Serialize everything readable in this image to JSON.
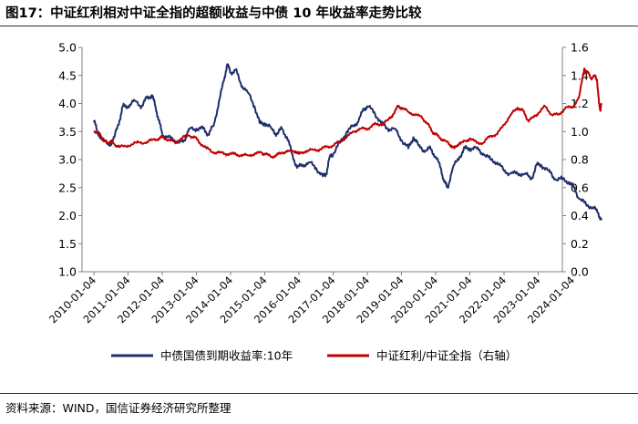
{
  "title": "图17：中证红利相对中证全指的超额收益与中债 10 年收益率走势比较",
  "source": "资料来源：WIND，国信证券经济研究所整理",
  "chart_data": {
    "type": "line",
    "x_tick_labels": [
      "2010-01-04",
      "2011-01-04",
      "2012-01-04",
      "2013-01-04",
      "2014-01-04",
      "2015-01-04",
      "2016-01-04",
      "2017-01-04",
      "2018-01-04",
      "2019-01-04",
      "2020-01-04",
      "2021-01-04",
      "2022-01-04",
      "2023-01-04",
      "2024-01-04"
    ],
    "x_range": [
      2010.0,
      2024.85
    ],
    "y_left": {
      "ticks": [
        "1.0",
        "1.5",
        "2.0",
        "2.5",
        "3.0",
        "3.5",
        "4.0",
        "4.5",
        "5.0"
      ],
      "min": 1.0,
      "max": 5.0
    },
    "y_right": {
      "ticks": [
        "0.0",
        "0.2",
        "0.4",
        "0.6",
        "0.8",
        "1.0",
        "1.2",
        "1.4",
        "1.6"
      ],
      "min": 0.0,
      "max": 1.6
    },
    "series": [
      {
        "name": "中债国债到期收益率:10年",
        "axis": "left",
        "color": "#1f2f6b",
        "points": [
          [
            2010.0,
            3.7
          ],
          [
            2010.1,
            3.5
          ],
          [
            2010.25,
            3.35
          ],
          [
            2010.45,
            3.25
          ],
          [
            2010.6,
            3.4
          ],
          [
            2010.75,
            3.7
          ],
          [
            2010.85,
            3.95
          ],
          [
            2011.0,
            3.95
          ],
          [
            2011.2,
            4.05
          ],
          [
            2011.4,
            3.95
          ],
          [
            2011.55,
            4.1
          ],
          [
            2011.7,
            4.15
          ],
          [
            2011.8,
            3.95
          ],
          [
            2011.9,
            3.7
          ],
          [
            2012.0,
            3.45
          ],
          [
            2012.15,
            3.4
          ],
          [
            2012.35,
            3.35
          ],
          [
            2012.5,
            3.3
          ],
          [
            2012.65,
            3.35
          ],
          [
            2012.8,
            3.55
          ],
          [
            2013.0,
            3.55
          ],
          [
            2013.2,
            3.55
          ],
          [
            2013.35,
            3.45
          ],
          [
            2013.5,
            3.6
          ],
          [
            2013.65,
            4.0
          ],
          [
            2013.8,
            4.4
          ],
          [
            2013.9,
            4.7
          ],
          [
            2014.0,
            4.55
          ],
          [
            2014.15,
            4.6
          ],
          [
            2014.3,
            4.35
          ],
          [
            2014.5,
            4.2
          ],
          [
            2014.7,
            3.95
          ],
          [
            2014.85,
            3.65
          ],
          [
            2015.0,
            3.65
          ],
          [
            2015.2,
            3.55
          ],
          [
            2015.35,
            3.45
          ],
          [
            2015.5,
            3.55
          ],
          [
            2015.65,
            3.4
          ],
          [
            2015.8,
            3.1
          ],
          [
            2015.95,
            2.85
          ],
          [
            2016.1,
            2.9
          ],
          [
            2016.3,
            2.95
          ],
          [
            2016.5,
            2.85
          ],
          [
            2016.7,
            2.7
          ],
          [
            2016.8,
            2.75
          ],
          [
            2016.9,
            3.05
          ],
          [
            2017.0,
            3.1
          ],
          [
            2017.2,
            3.3
          ],
          [
            2017.4,
            3.5
          ],
          [
            2017.6,
            3.6
          ],
          [
            2017.75,
            3.7
          ],
          [
            2017.9,
            3.9
          ],
          [
            2018.0,
            3.95
          ],
          [
            2018.2,
            3.85
          ],
          [
            2018.4,
            3.65
          ],
          [
            2018.6,
            3.55
          ],
          [
            2018.8,
            3.55
          ],
          [
            2019.0,
            3.35
          ],
          [
            2019.2,
            3.2
          ],
          [
            2019.35,
            3.4
          ],
          [
            2019.5,
            3.25
          ],
          [
            2019.7,
            3.15
          ],
          [
            2019.85,
            3.2
          ],
          [
            2020.0,
            3.05
          ],
          [
            2020.15,
            2.85
          ],
          [
            2020.25,
            2.6
          ],
          [
            2020.35,
            2.5
          ],
          [
            2020.5,
            2.85
          ],
          [
            2020.7,
            3.05
          ],
          [
            2020.85,
            3.2
          ],
          [
            2021.0,
            3.2
          ],
          [
            2021.2,
            3.2
          ],
          [
            2021.4,
            3.1
          ],
          [
            2021.6,
            3.0
          ],
          [
            2021.8,
            2.95
          ],
          [
            2022.0,
            2.8
          ],
          [
            2022.2,
            2.75
          ],
          [
            2022.4,
            2.75
          ],
          [
            2022.6,
            2.75
          ],
          [
            2022.8,
            2.65
          ],
          [
            2022.95,
            2.9
          ],
          [
            2023.1,
            2.9
          ],
          [
            2023.3,
            2.8
          ],
          [
            2023.5,
            2.65
          ],
          [
            2023.7,
            2.65
          ],
          [
            2023.9,
            2.6
          ],
          [
            2024.05,
            2.5
          ],
          [
            2024.2,
            2.3
          ],
          [
            2024.4,
            2.2
          ],
          [
            2024.6,
            2.15
          ],
          [
            2024.75,
            2.05
          ],
          [
            2024.85,
            1.92
          ]
        ]
      },
      {
        "name": "中证红利/中证全指（右轴）",
        "axis": "right",
        "color": "#c00000",
        "points": [
          [
            2010.0,
            1.0
          ],
          [
            2010.1,
            1.0
          ],
          [
            2010.2,
            0.97
          ],
          [
            2010.3,
            0.93
          ],
          [
            2010.4,
            0.92
          ],
          [
            2010.5,
            0.93
          ],
          [
            2010.6,
            0.91
          ],
          [
            2010.75,
            0.89
          ],
          [
            2011.0,
            0.9
          ],
          [
            2011.25,
            0.92
          ],
          [
            2011.5,
            0.92
          ],
          [
            2011.7,
            0.94
          ],
          [
            2011.9,
            0.95
          ],
          [
            2012.0,
            0.96
          ],
          [
            2012.2,
            0.94
          ],
          [
            2012.4,
            0.92
          ],
          [
            2012.6,
            0.96
          ],
          [
            2012.8,
            0.97
          ],
          [
            2012.95,
            0.96
          ],
          [
            2013.1,
            0.92
          ],
          [
            2013.3,
            0.88
          ],
          [
            2013.5,
            0.85
          ],
          [
            2013.7,
            0.85
          ],
          [
            2013.9,
            0.84
          ],
          [
            2014.1,
            0.84
          ],
          [
            2014.3,
            0.83
          ],
          [
            2014.5,
            0.83
          ],
          [
            2014.7,
            0.84
          ],
          [
            2014.9,
            0.85
          ],
          [
            2015.0,
            0.84
          ],
          [
            2015.2,
            0.82
          ],
          [
            2015.35,
            0.83
          ],
          [
            2015.5,
            0.85
          ],
          [
            2015.7,
            0.86
          ],
          [
            2015.9,
            0.86
          ],
          [
            2016.0,
            0.84
          ],
          [
            2016.2,
            0.86
          ],
          [
            2016.4,
            0.87
          ],
          [
            2016.6,
            0.87
          ],
          [
            2016.8,
            0.89
          ],
          [
            2017.0,
            0.9
          ],
          [
            2017.2,
            0.93
          ],
          [
            2017.4,
            0.96
          ],
          [
            2017.6,
            1.0
          ],
          [
            2017.8,
            1.02
          ],
          [
            2018.0,
            1.02
          ],
          [
            2018.2,
            1.05
          ],
          [
            2018.4,
            1.05
          ],
          [
            2018.6,
            1.08
          ],
          [
            2018.75,
            1.12
          ],
          [
            2018.9,
            1.18
          ],
          [
            2019.0,
            1.17
          ],
          [
            2019.2,
            1.14
          ],
          [
            2019.4,
            1.12
          ],
          [
            2019.6,
            1.1
          ],
          [
            2019.75,
            1.06
          ],
          [
            2019.9,
            1.0
          ],
          [
            2020.0,
            0.98
          ],
          [
            2020.15,
            0.95
          ],
          [
            2020.3,
            0.93
          ],
          [
            2020.45,
            0.9
          ],
          [
            2020.55,
            0.88
          ],
          [
            2020.7,
            0.92
          ],
          [
            2020.9,
            0.93
          ],
          [
            2021.0,
            0.95
          ],
          [
            2021.2,
            0.92
          ],
          [
            2021.4,
            0.92
          ],
          [
            2021.6,
            0.97
          ],
          [
            2021.8,
            0.98
          ],
          [
            2022.0,
            1.05
          ],
          [
            2022.2,
            1.12
          ],
          [
            2022.4,
            1.17
          ],
          [
            2022.55,
            1.15
          ],
          [
            2022.7,
            1.08
          ],
          [
            2022.85,
            1.1
          ],
          [
            2023.0,
            1.13
          ],
          [
            2023.2,
            1.18
          ],
          [
            2023.4,
            1.12
          ],
          [
            2023.6,
            1.12
          ],
          [
            2023.8,
            1.17
          ],
          [
            2024.0,
            1.17
          ],
          [
            2024.2,
            1.25
          ],
          [
            2024.35,
            1.45
          ],
          [
            2024.45,
            1.42
          ],
          [
            2024.55,
            1.38
          ],
          [
            2024.65,
            1.4
          ],
          [
            2024.72,
            1.37
          ],
          [
            2024.78,
            1.2
          ],
          [
            2024.82,
            1.15
          ],
          [
            2024.85,
            1.2
          ]
        ]
      }
    ]
  }
}
